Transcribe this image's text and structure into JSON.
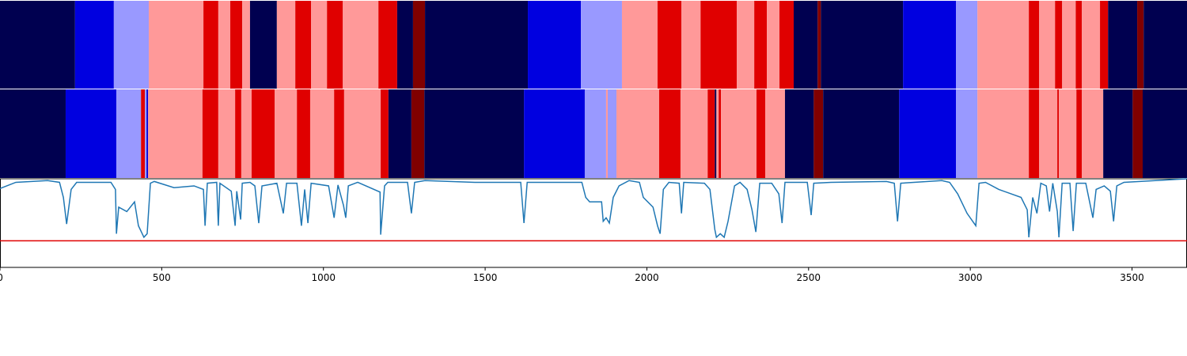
{
  "chart_data": [
    {
      "type": "band",
      "xlim": [
        0,
        3670
      ],
      "colors": [
        "#000050",
        "#0000e0",
        "#9999ff",
        "#ff9999",
        "#e00000",
        "#800000"
      ],
      "boundaries": [
        0,
        232,
        352,
        460,
        629,
        675,
        712,
        749,
        773,
        856,
        913,
        962,
        1011,
        1060,
        1170,
        1228,
        1277,
        1314,
        1632,
        1796,
        1923,
        2033,
        2107,
        2166,
        2278,
        2332,
        2371,
        2410,
        2454,
        2528,
        2538,
        2792,
        2956,
        3022,
        3181,
        3213,
        3262,
        3284,
        3326,
        3345,
        3401,
        3426,
        3516,
        3536,
        3670
      ],
      "classes": [
        0,
        1,
        2,
        3,
        4,
        3,
        4,
        3,
        0,
        3,
        4,
        3,
        4,
        3,
        4,
        0,
        5,
        0,
        1,
        2,
        3,
        4,
        3,
        4,
        3,
        4,
        3,
        4,
        0,
        5,
        0,
        1,
        2,
        3,
        4,
        3,
        4,
        3,
        4,
        3,
        4,
        0,
        5,
        0
      ]
    },
    {
      "type": "band",
      "xlim": [
        0,
        3670
      ],
      "colors": [
        "#000050",
        "#0000e0",
        "#9999ff",
        "#ff9999",
        "#e00000",
        "#800000"
      ],
      "boundaries": [
        0,
        203,
        360,
        436,
        448,
        453,
        458,
        626,
        675,
        727,
        746,
        778,
        849,
        918,
        959,
        1033,
        1064,
        1177,
        1201,
        1272,
        1312,
        1620,
        1808,
        1874,
        1879,
        1906,
        2038,
        2104,
        2188,
        2210,
        2215,
        2222,
        2229,
        2339,
        2366,
        2427,
        2516,
        2545,
        2780,
        2956,
        3022,
        3181,
        3213,
        3269,
        3274,
        3328,
        3345,
        3411,
        3502,
        3533,
        3670
      ],
      "classes": [
        0,
        1,
        2,
        4,
        2,
        1,
        3,
        4,
        3,
        4,
        3,
        4,
        3,
        4,
        3,
        4,
        3,
        4,
        0,
        5,
        0,
        1,
        2,
        3,
        2,
        3,
        4,
        3,
        4,
        0,
        3,
        4,
        3,
        4,
        3,
        0,
        5,
        0,
        1,
        2,
        3,
        4,
        3,
        4,
        3,
        4,
        3,
        0,
        5,
        0
      ]
    },
    {
      "type": "line",
      "xlim": [
        0,
        3670
      ],
      "ylim": [
        0,
        1
      ],
      "xticks": [
        0,
        500,
        1000,
        1500,
        2000,
        2500,
        3000,
        3500
      ],
      "color": "#1f77b4",
      "threshold": 0.3,
      "threshold_color": "#e00000",
      "x": [
        0,
        49,
        147,
        184,
        196,
        206,
        220,
        237,
        343,
        357,
        360,
        367,
        392,
        416,
        428,
        445,
        455,
        465,
        477,
        538,
        600,
        629,
        634,
        641,
        670,
        675,
        680,
        715,
        727,
        732,
        744,
        749,
        773,
        788,
        800,
        810,
        856,
        876,
        886,
        918,
        932,
        942,
        952,
        962,
        1016,
        1033,
        1045,
        1062,
        1069,
        1077,
        1106,
        1175,
        1177,
        1189,
        1199,
        1260,
        1272,
        1282,
        1314,
        1468,
        1610,
        1620,
        1630,
        1799,
        1811,
        1823,
        1860,
        1865,
        1874,
        1884,
        1896,
        1914,
        1945,
        1977,
        1989,
        2019,
        2033,
        2041,
        2051,
        2068,
        2100,
        2107,
        2114,
        2178,
        2195,
        2210,
        2215,
        2227,
        2239,
        2251,
        2271,
        2288,
        2310,
        2325,
        2337,
        2349,
        2386,
        2408,
        2418,
        2427,
        2496,
        2508,
        2516,
        2569,
        2741,
        2765,
        2775,
        2785,
        2912,
        2936,
        2961,
        2990,
        3017,
        3027,
        3047,
        3088,
        3157,
        3176,
        3181,
        3193,
        3206,
        3218,
        3235,
        3245,
        3255,
        3269,
        3274,
        3284,
        3308,
        3318,
        3328,
        3357,
        3379,
        3389,
        3414,
        3433,
        3443,
        3453,
        3475,
        3573,
        3670
      ],
      "values": [
        0.89,
        0.96,
        0.98,
        0.96,
        0.79,
        0.49,
        0.88,
        0.96,
        0.96,
        0.88,
        0.38,
        0.68,
        0.63,
        0.74,
        0.47,
        0.34,
        0.38,
        0.95,
        0.97,
        0.9,
        0.92,
        0.88,
        0.47,
        0.95,
        0.96,
        0.47,
        0.95,
        0.86,
        0.47,
        0.86,
        0.54,
        0.95,
        0.96,
        0.92,
        0.5,
        0.92,
        0.95,
        0.61,
        0.95,
        0.95,
        0.47,
        0.88,
        0.5,
        0.95,
        0.92,
        0.56,
        0.93,
        0.7,
        0.56,
        0.92,
        0.96,
        0.85,
        0.37,
        0.92,
        0.96,
        0.96,
        0.61,
        0.96,
        0.98,
        0.96,
        0.96,
        0.5,
        0.96,
        0.96,
        0.79,
        0.74,
        0.74,
        0.52,
        0.56,
        0.5,
        0.79,
        0.92,
        0.98,
        0.96,
        0.79,
        0.68,
        0.47,
        0.38,
        0.88,
        0.96,
        0.95,
        0.61,
        0.96,
        0.95,
        0.88,
        0.43,
        0.34,
        0.38,
        0.34,
        0.52,
        0.92,
        0.96,
        0.88,
        0.65,
        0.4,
        0.95,
        0.95,
        0.83,
        0.5,
        0.96,
        0.96,
        0.59,
        0.95,
        0.96,
        0.97,
        0.95,
        0.52,
        0.95,
        0.98,
        0.96,
        0.83,
        0.61,
        0.47,
        0.95,
        0.96,
        0.88,
        0.79,
        0.65,
        0.34,
        0.79,
        0.61,
        0.95,
        0.92,
        0.63,
        0.95,
        0.63,
        0.34,
        0.95,
        0.95,
        0.41,
        0.95,
        0.95,
        0.56,
        0.88,
        0.92,
        0.86,
        0.52,
        0.92,
        0.96,
        0.98,
        1.0
      ]
    }
  ]
}
